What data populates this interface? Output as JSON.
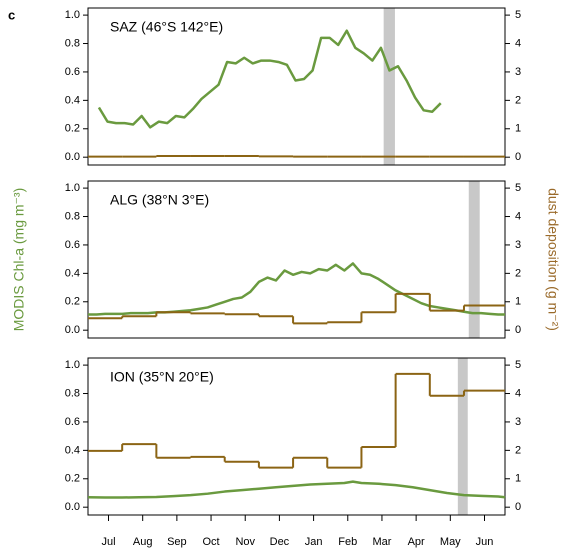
{
  "label": "c",
  "chart_data": [
    {
      "type": "line",
      "title": "SAZ (46°S 142°E)",
      "xlim": [
        0,
        12.2
      ],
      "ylim": [
        -0.055,
        1.05
      ],
      "y2lim": [
        -0.275,
        5.25
      ],
      "yticks": [
        {
          "value": 0,
          "label": "0.0"
        },
        0.2,
        0.4,
        0.6,
        0.8,
        {
          "value": 1,
          "label": "1.0"
        }
      ],
      "y2ticks": [
        0,
        1,
        2,
        3,
        4,
        5
      ],
      "highlight": [
        8.65,
        8.98
      ],
      "highlight_color": "#c8c8c8",
      "series": [
        {
          "color": "#6a9a3f",
          "x": [
            0.32,
            0.57,
            0.82,
            1.07,
            1.32,
            1.57,
            1.82,
            2.07,
            2.32,
            2.57,
            2.82,
            3.07,
            3.32,
            3.57,
            3.82,
            4.07,
            4.32,
            4.57,
            4.82,
            5.07,
            5.32,
            5.57,
            5.82,
            6.07,
            6.32,
            6.57,
            6.82,
            7.07,
            7.32,
            7.57,
            7.82,
            8.07,
            8.32,
            8.57,
            8.82,
            9.07,
            9.32,
            9.57,
            9.82,
            10.07,
            10.32
          ],
          "values": [
            0.35,
            0.25,
            0.24,
            0.24,
            0.23,
            0.29,
            0.21,
            0.25,
            0.24,
            0.29,
            0.28,
            0.34,
            0.41,
            0.46,
            0.51,
            0.67,
            0.66,
            0.7,
            0.66,
            0.68,
            0.68,
            0.67,
            0.65,
            0.54,
            0.55,
            0.61,
            0.84,
            0.84,
            0.79,
            0.89,
            0.77,
            0.73,
            0.68,
            0.77,
            0.61,
            0.64,
            0.54,
            0.42,
            0.33,
            0.32,
            0.38
          ]
        },
        {
          "color": "#8b6414",
          "axis": "y2",
          "drawstyle": "steps-post",
          "x": [
            0,
            1,
            2,
            3,
            4,
            5,
            6,
            7,
            8,
            9,
            10,
            11
          ],
          "values": [
            0.02,
            0.02,
            0.04,
            0.04,
            0.04,
            0.03,
            0.02,
            0.02,
            0.02,
            0.02,
            0.02,
            0.02
          ]
        }
      ]
    },
    {
      "type": "line",
      "title": "ALG (38°N 3°E)",
      "ylabel": "MODIS Chl-a (mg m⁻³)",
      "y2label": "dust deposition (g m⁻²)",
      "ylabel_color": "#6a9a3f",
      "y2label_color": "#9a6a2a",
      "xlim": [
        0,
        12.2
      ],
      "ylim": [
        -0.055,
        1.05
      ],
      "y2lim": [
        -0.275,
        5.25
      ],
      "yticks": [
        {
          "value": 0,
          "label": "0.0"
        },
        0.2,
        0.4,
        0.6,
        0.8,
        {
          "value": 1,
          "label": "1.0"
        }
      ],
      "y2ticks": [
        0,
        1,
        2,
        3,
        4,
        5
      ],
      "highlight": [
        11.14,
        11.46
      ],
      "highlight_color": "#c8c8c8",
      "series": [
        {
          "color": "#6a9a3f",
          "x": [
            0,
            0.25,
            0.5,
            0.75,
            1,
            1.25,
            1.5,
            1.75,
            2,
            2.25,
            2.5,
            2.75,
            3,
            3.25,
            3.5,
            3.75,
            4,
            4.25,
            4.5,
            4.75,
            5,
            5.25,
            5.5,
            5.75,
            6,
            6.25,
            6.5,
            6.75,
            7,
            7.25,
            7.5,
            7.75,
            8,
            8.25,
            8.5,
            8.75,
            9,
            9.25,
            9.5,
            9.75,
            10,
            10.25,
            10.5,
            10.75,
            11,
            11.25,
            11.5,
            11.75,
            12,
            12.2
          ],
          "values": [
            0.11,
            0.11,
            0.115,
            0.115,
            0.115,
            0.12,
            0.12,
            0.12,
            0.125,
            0.125,
            0.13,
            0.135,
            0.14,
            0.15,
            0.16,
            0.18,
            0.2,
            0.22,
            0.23,
            0.27,
            0.34,
            0.37,
            0.35,
            0.42,
            0.39,
            0.41,
            0.4,
            0.43,
            0.42,
            0.46,
            0.42,
            0.47,
            0.4,
            0.39,
            0.36,
            0.32,
            0.28,
            0.25,
            0.22,
            0.19,
            0.17,
            0.16,
            0.15,
            0.14,
            0.13,
            0.12,
            0.12,
            0.115,
            0.11,
            0.11
          ]
        },
        {
          "color": "#8b6414",
          "axis": "y2",
          "drawstyle": "steps-post",
          "x": [
            0,
            1,
            2,
            3,
            4,
            5,
            6,
            7,
            8,
            9,
            10,
            11
          ],
          "values": [
            0.42,
            0.49,
            0.63,
            0.59,
            0.56,
            0.49,
            0.24,
            0.28,
            0.63,
            1.28,
            0.69,
            0.87
          ]
        }
      ]
    },
    {
      "type": "line",
      "title": "ION (35°N 20°E)",
      "xlim": [
        0,
        12.2
      ],
      "ylim": [
        -0.055,
        1.05
      ],
      "y2lim": [
        -0.275,
        5.25
      ],
      "yticks": [
        {
          "value": 0,
          "label": "0.0"
        },
        0.2,
        0.4,
        0.6,
        0.8,
        {
          "value": 1,
          "label": "1.0"
        }
      ],
      "y2ticks": [
        0,
        1,
        2,
        3,
        4,
        5
      ],
      "xticks": [
        {
          "value": 0.6,
          "label": "Jul"
        },
        {
          "value": 1.6,
          "label": "Aug"
        },
        {
          "value": 2.6,
          "label": "Sep"
        },
        {
          "value": 3.6,
          "label": "Oct"
        },
        {
          "value": 4.6,
          "label": "Nov"
        },
        {
          "value": 5.6,
          "label": "Dec"
        },
        {
          "value": 6.6,
          "label": "Jan"
        },
        {
          "value": 7.6,
          "label": "Feb"
        },
        {
          "value": 8.6,
          "label": "Mar"
        },
        {
          "value": 9.6,
          "label": "Apr"
        },
        {
          "value": 10.6,
          "label": "May"
        },
        {
          "value": 11.6,
          "label": "Jun"
        }
      ],
      "highlight": [
        10.82,
        11.11
      ],
      "highlight_color": "#c8c8c8",
      "series": [
        {
          "color": "#6a9a3f",
          "x": [
            0,
            0.5,
            1,
            1.5,
            2,
            2.5,
            3,
            3.5,
            4,
            4.5,
            5,
            5.5,
            6,
            6.5,
            7,
            7.5,
            7.75,
            8,
            8.5,
            9,
            9.5,
            10,
            10.5,
            11,
            11.5,
            12,
            12.2
          ],
          "values": [
            0.07,
            0.068,
            0.068,
            0.07,
            0.072,
            0.078,
            0.085,
            0.095,
            0.11,
            0.12,
            0.13,
            0.14,
            0.15,
            0.16,
            0.165,
            0.17,
            0.18,
            0.17,
            0.165,
            0.155,
            0.14,
            0.12,
            0.1,
            0.085,
            0.08,
            0.075,
            0.07
          ]
        },
        {
          "color": "#8b6414",
          "axis": "y2",
          "drawstyle": "steps-post",
          "x": [
            0,
            1,
            2,
            3,
            4,
            5,
            6,
            7,
            8,
            9,
            10,
            11
          ],
          "values": [
            1.98,
            2.22,
            1.74,
            1.77,
            1.6,
            1.39,
            1.74,
            1.39,
            2.12,
            4.69,
            3.92,
            4.1
          ]
        }
      ]
    }
  ]
}
